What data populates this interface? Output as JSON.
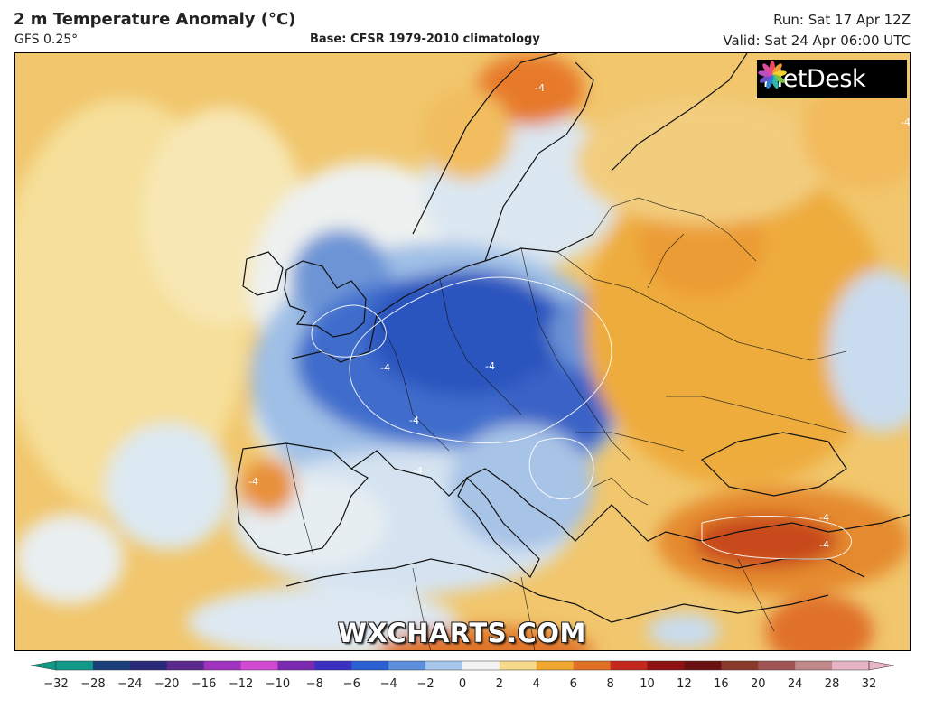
{
  "header": {
    "title": "2 m Temperature Anomaly (°C)",
    "model": "GFS 0.25°",
    "base": "Base: CFSR 1979-2010 climatology",
    "run": "Run: Sat 17 Apr 12Z",
    "valid": "Valid: Sat 24 Apr 06:00 UTC"
  },
  "logo": {
    "icon": "metdesk-flower-icon",
    "text": "MetDesk"
  },
  "watermark": "WXCHARTS.COM",
  "map": {
    "contour_label": "-4",
    "colors": {
      "warm": "#f2c56a",
      "hot": "#e07a2a",
      "very_hot": "#c0391b",
      "neutral": "#f7f3e4",
      "cool": "#cfe0f2",
      "cold": "#7fa8db",
      "very_cold": "#2f5fbf",
      "coldest": "#1f3e9c"
    }
  },
  "colorbar": {
    "ticks": [
      "−32",
      "−28",
      "−24",
      "−20",
      "−16",
      "−12",
      "−10",
      "−8",
      "−6",
      "−4",
      "−2",
      "0",
      "2",
      "4",
      "6",
      "8",
      "10",
      "12",
      "16",
      "20",
      "24",
      "28",
      "32"
    ],
    "colors": [
      "#0f9a89",
      "#1a3f7a",
      "#2a2a7a",
      "#5a2a8e",
      "#a032c0",
      "#d24ad2",
      "#7a2ab0",
      "#3b2fc4",
      "#2a5fd6",
      "#5d8fdc",
      "#a8c7ec",
      "#f3f3f3",
      "#f6d98a",
      "#f0a82c",
      "#e07024",
      "#c4281c",
      "#8f1212",
      "#6a1212",
      "#8a3a2a",
      "#a15454",
      "#c08888",
      "#e6b4c6"
    ]
  }
}
